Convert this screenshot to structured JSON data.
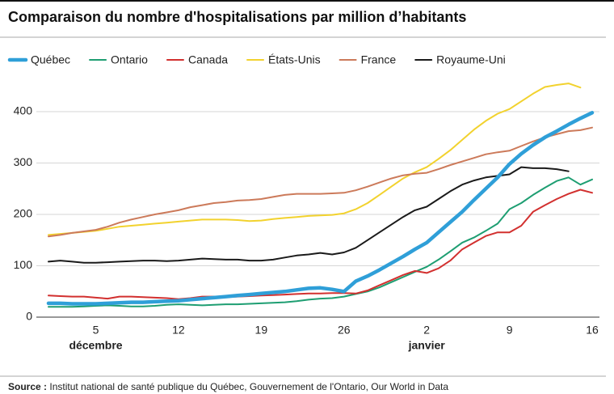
{
  "chart_data": {
    "type": "line",
    "title": "Comparaison du nombre d'hospitalisations par million d’habitants",
    "categories": [
      null,
      null,
      null,
      null,
      "5",
      null,
      null,
      null,
      null,
      null,
      null,
      "12",
      null,
      null,
      null,
      null,
      null,
      null,
      "19",
      null,
      null,
      null,
      null,
      null,
      null,
      "26",
      null,
      null,
      null,
      null,
      null,
      null,
      "2",
      null,
      null,
      null,
      null,
      null,
      null,
      "9",
      null,
      null,
      null,
      null,
      null,
      null,
      "16"
    ],
    "month_labels": [
      "décembre",
      "janvier"
    ],
    "series": [
      {
        "name": "Québec",
        "color": "#2f9fd8",
        "width": 4.5,
        "values": [
          27,
          27,
          26,
          26,
          26,
          27,
          28,
          29,
          29,
          30,
          31,
          32,
          34,
          36,
          38,
          40,
          42,
          44,
          46,
          48,
          50,
          53,
          56,
          57,
          54,
          50,
          70,
          80,
          92,
          105,
          118,
          132,
          145,
          165,
          185,
          205,
          228,
          250,
          272,
          298,
          318,
          335,
          350,
          362,
          375,
          387,
          398
        ]
      },
      {
        "name": "Ontario",
        "color": "#1e9e72",
        "width": 2,
        "values": [
          20,
          20,
          20,
          21,
          22,
          23,
          22,
          21,
          21,
          22,
          24,
          25,
          24,
          23,
          24,
          25,
          25,
          26,
          27,
          28,
          29,
          31,
          34,
          36,
          37,
          40,
          45,
          50,
          58,
          68,
          78,
          88,
          98,
          112,
          128,
          145,
          155,
          168,
          182,
          210,
          222,
          238,
          252,
          265,
          272,
          258,
          268
        ]
      },
      {
        "name": "Canada",
        "color": "#d2302f",
        "width": 2,
        "values": [
          42,
          41,
          40,
          40,
          38,
          36,
          40,
          40,
          39,
          38,
          37,
          35,
          37,
          40,
          40,
          39,
          40,
          41,
          42,
          43,
          44,
          45,
          46,
          46,
          47,
          47,
          46,
          52,
          62,
          72,
          82,
          90,
          86,
          95,
          110,
          132,
          145,
          158,
          165,
          165,
          178,
          205,
          218,
          230,
          240,
          248,
          242
        ]
      },
      {
        "name": "États-Unis",
        "color": "#f2d22e",
        "width": 2,
        "values": [
          160,
          162,
          164,
          166,
          168,
          172,
          176,
          178,
          180,
          182,
          184,
          186,
          188,
          190,
          190,
          190,
          189,
          187,
          188,
          191,
          193,
          195,
          197,
          198,
          199,
          202,
          210,
          222,
          238,
          254,
          270,
          282,
          292,
          308,
          325,
          345,
          365,
          382,
          396,
          405,
          420,
          435,
          448,
          452,
          455,
          447,
          null
        ]
      },
      {
        "name": "France",
        "color": "#cc7a5a",
        "width": 2,
        "values": [
          157,
          160,
          164,
          167,
          170,
          176,
          184,
          190,
          195,
          200,
          204,
          208,
          214,
          218,
          222,
          224,
          227,
          228,
          230,
          234,
          238,
          240,
          240,
          240,
          241,
          242,
          247,
          254,
          262,
          270,
          276,
          279,
          281,
          288,
          296,
          303,
          310,
          317,
          321,
          324,
          333,
          342,
          350,
          356,
          362,
          364,
          369
        ]
      },
      {
        "name": "Royaume-Uni",
        "color": "#1a1a1a",
        "width": 2,
        "values": [
          108,
          110,
          108,
          106,
          106,
          107,
          108,
          109,
          110,
          110,
          109,
          110,
          112,
          114,
          113,
          112,
          112,
          110,
          110,
          112,
          116,
          120,
          122,
          125,
          122,
          126,
          135,
          150,
          165,
          180,
          195,
          208,
          215,
          230,
          245,
          258,
          266,
          272,
          275,
          278,
          292,
          290,
          290,
          288,
          284,
          null,
          null
        ]
      }
    ],
    "ylim": [
      0,
      440
    ],
    "yticks": [
      0,
      100,
      200,
      300,
      400
    ],
    "grid": true,
    "source_label": "Source :",
    "source": "Institut national de santé publique du Québec, Gouvernement de l'Ontario, Our World in Data"
  }
}
